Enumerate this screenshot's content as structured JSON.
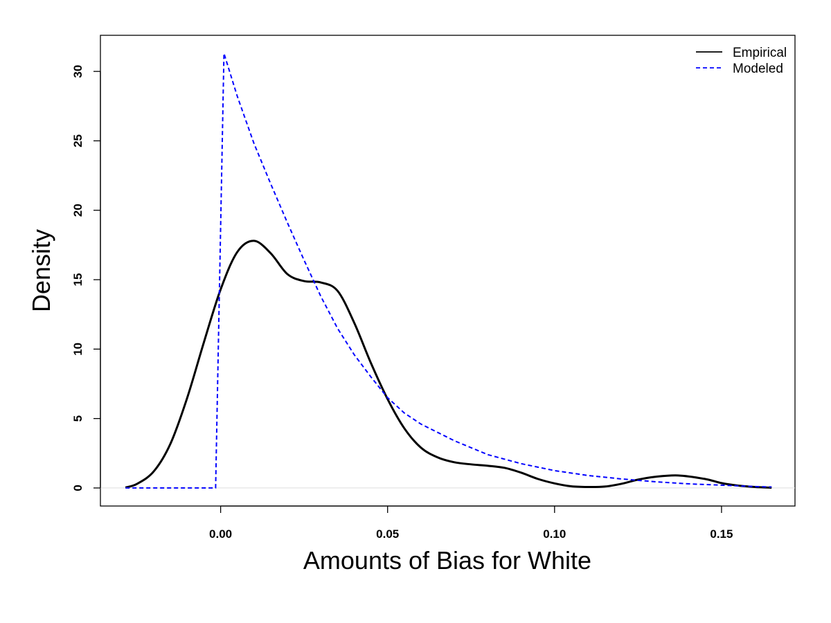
{
  "chart_data": {
    "type": "line",
    "title": "",
    "xlabel": "Amounts of Bias for White",
    "ylabel": "Density",
    "xlim": [
      -0.036,
      0.172
    ],
    "ylim": [
      -1.3,
      32.6
    ],
    "x_ticks": [
      0.0,
      0.05,
      0.1,
      0.15
    ],
    "x_tick_labels": [
      "0.00",
      "0.05",
      "0.10",
      "0.15"
    ],
    "y_ticks": [
      0,
      5,
      10,
      15,
      20,
      25,
      30
    ],
    "y_tick_labels": [
      "0",
      "5",
      "10",
      "15",
      "20",
      "25",
      "30"
    ],
    "grid": false,
    "zero_line": true,
    "legend": {
      "position": "top-right"
    },
    "series": [
      {
        "name": "Empirical",
        "color": "#000000",
        "style": "solid",
        "x": [
          -0.0285,
          -0.025,
          -0.02,
          -0.015,
          -0.01,
          -0.005,
          0.0,
          0.005,
          0.01,
          0.015,
          0.02,
          0.025,
          0.03,
          0.035,
          0.04,
          0.045,
          0.05,
          0.055,
          0.06,
          0.065,
          0.07,
          0.075,
          0.08,
          0.085,
          0.09,
          0.095,
          0.1,
          0.105,
          0.11,
          0.115,
          0.12,
          0.125,
          0.13,
          0.137,
          0.145,
          0.15,
          0.155,
          0.16,
          0.165
        ],
        "y": [
          0.03,
          0.3,
          1.2,
          3.2,
          6.5,
          10.5,
          14.3,
          17.0,
          17.8,
          16.9,
          15.4,
          14.9,
          14.8,
          14.2,
          11.9,
          9.0,
          6.4,
          4.3,
          2.9,
          2.2,
          1.85,
          1.7,
          1.6,
          1.45,
          1.1,
          0.65,
          0.33,
          0.12,
          0.07,
          0.1,
          0.3,
          0.6,
          0.8,
          0.9,
          0.65,
          0.35,
          0.17,
          0.07,
          0.02
        ]
      },
      {
        "name": "Modeled",
        "color": "#0000ff",
        "style": "dashed",
        "x": [
          -0.0285,
          -0.0015,
          0.001,
          0.005,
          0.01,
          0.015,
          0.02,
          0.025,
          0.03,
          0.035,
          0.04,
          0.045,
          0.05,
          0.055,
          0.06,
          0.07,
          0.08,
          0.09,
          0.1,
          0.11,
          0.12,
          0.13,
          0.14,
          0.15,
          0.16,
          0.165
        ],
        "y": [
          0,
          0,
          31.3,
          28.2,
          24.8,
          21.9,
          19.1,
          16.4,
          13.8,
          11.5,
          9.6,
          8.0,
          6.5,
          5.4,
          4.6,
          3.4,
          2.4,
          1.75,
          1.25,
          0.9,
          0.65,
          0.45,
          0.3,
          0.2,
          0.1,
          0.07
        ]
      }
    ]
  }
}
